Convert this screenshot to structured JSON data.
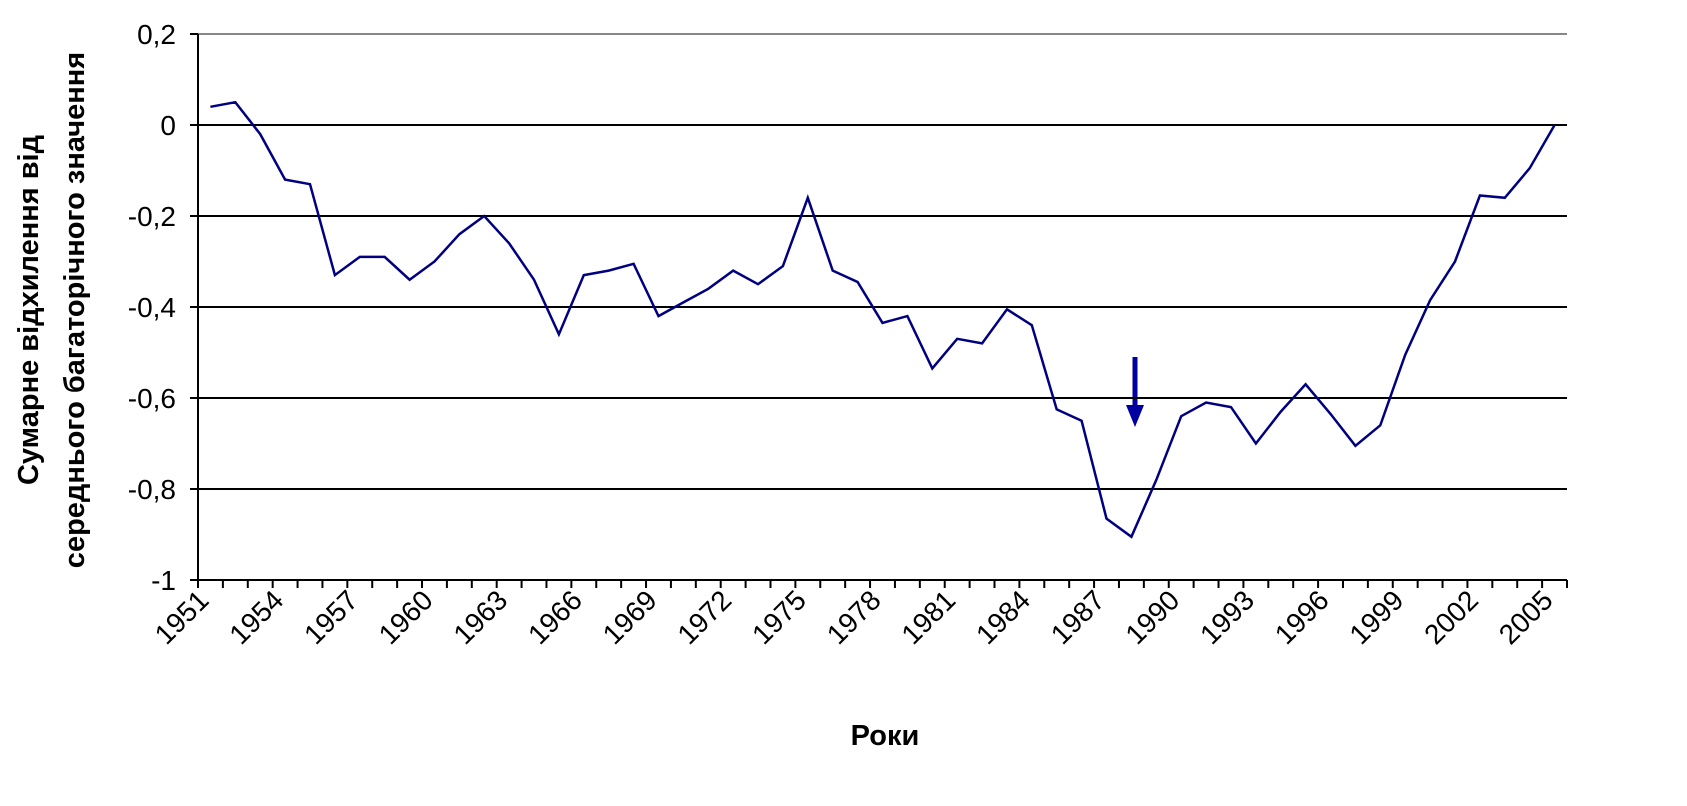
{
  "chart_data": {
    "type": "line",
    "ylabel": [
      "Сумарне відхилення від",
      "середнього багаторічного значення"
    ],
    "xlabel": "Роки",
    "categories": [
      "1951",
      null,
      null,
      "1954",
      null,
      null,
      "1957",
      null,
      null,
      "1960",
      null,
      null,
      "1963",
      null,
      null,
      "1966",
      null,
      null,
      "1969",
      null,
      null,
      "1972",
      null,
      null,
      "1975",
      null,
      null,
      "1978",
      null,
      null,
      "1981",
      null,
      null,
      "1984",
      null,
      null,
      "1987",
      null,
      null,
      "1990",
      null,
      null,
      "1993",
      null,
      null,
      "1996",
      null,
      null,
      "1999",
      null,
      null,
      "2002",
      null,
      null,
      "2005"
    ],
    "series": [
      {
        "color": "#000080",
        "values": [
          0.04,
          0.05,
          -0.02,
          -0.12,
          -0.13,
          -0.33,
          -0.29,
          -0.29,
          -0.34,
          -0.3,
          -0.24,
          -0.2,
          -0.26,
          -0.34,
          -0.46,
          -0.33,
          -0.32,
          -0.305,
          -0.42,
          -0.39,
          -0.36,
          -0.32,
          -0.35,
          -0.31,
          -0.16,
          -0.32,
          -0.345,
          -0.435,
          -0.42,
          -0.535,
          -0.47,
          -0.48,
          -0.405,
          -0.44,
          -0.625,
          -0.65,
          -0.865,
          -0.905,
          -0.78,
          -0.64,
          -0.61,
          -0.62,
          -0.7,
          -0.63,
          -0.57,
          -0.635,
          -0.705,
          -0.66,
          -0.505,
          -0.385,
          -0.3,
          -0.155,
          -0.16,
          -0.095,
          0.0
        ]
      }
    ],
    "ylim": [
      -1,
      0.2
    ],
    "yticks": [
      {
        "value": 0.2,
        "label": "0,2"
      },
      0,
      {
        "value": -0.2,
        "label": "-0,2"
      },
      {
        "value": -0.4,
        "label": "-0,4"
      },
      {
        "value": -0.6,
        "label": "-0,6"
      },
      {
        "value": -0.8,
        "label": "-0,8"
      },
      -1
    ],
    "grid": true
  }
}
